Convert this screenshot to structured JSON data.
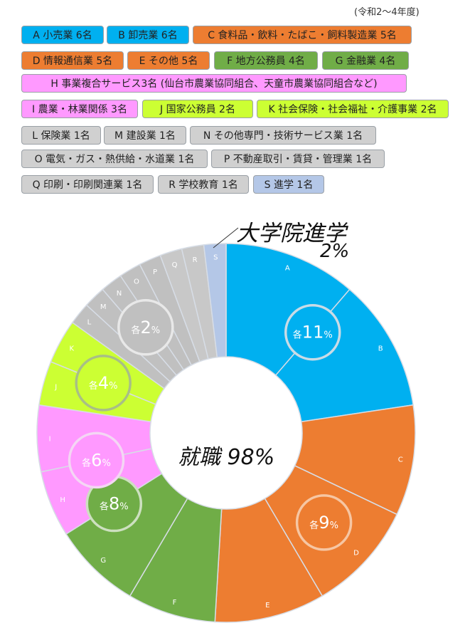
{
  "period": "(令和2〜4年度)",
  "legend": [
    {
      "text": "A 小売業 6名",
      "color": "#00b0f0"
    },
    {
      "text": "B 卸売業 6名",
      "color": "#00b0f0"
    },
    {
      "text": "C 食料品・飲料・たばこ・飼料製造業 5名",
      "color": "#ed7d31"
    },
    {
      "text": "D 情報通信業 5名",
      "color": "#ed7d31"
    },
    {
      "text": "E その他 5名",
      "color": "#ed7d31"
    },
    {
      "text": "F 地方公務員 4名",
      "color": "#70ad47"
    },
    {
      "text": "G 金融業 4名",
      "color": "#70ad47"
    },
    {
      "text": "H 事業複合サービス3名 (仙台市農業協同組合、天童市農業協同組合など)",
      "color": "#ff99ff"
    },
    {
      "text": "I 農業・林業関係 3名",
      "color": "#ff99ff"
    },
    {
      "text": "J 国家公務員 2名",
      "color": "#ccff33"
    },
    {
      "text": "K 社会保険・社会福祉・介護事業 2名",
      "color": "#ccff33"
    },
    {
      "text": "L 保険業 1名",
      "color": "#d0d0d0"
    },
    {
      "text": "M 建設業 1名",
      "color": "#d0d0d0"
    },
    {
      "text": "N その他専門・技術サービス業 1名",
      "color": "#d0d0d0"
    },
    {
      "text": "O 電気・ガス・熱供給・水道業 1名",
      "color": "#d0d0d0"
    },
    {
      "text": "P 不動産取引・賃貸・管理業 1名",
      "color": "#d0d0d0"
    },
    {
      "text": "Q 印刷・印刷関連業 1名",
      "color": "#d0d0d0"
    },
    {
      "text": "R 学校教育 1名",
      "color": "#d0d0d0"
    },
    {
      "text": "S 進学 1名",
      "color": "#b4c7e7"
    }
  ],
  "center_label": "就職 98%",
  "grad_label": "大学院進学",
  "grad_pct": "2%",
  "chart_data": {
    "type": "pie",
    "donut": true,
    "categories": [
      "A",
      "B",
      "C",
      "D",
      "E",
      "F",
      "G",
      "H",
      "I",
      "J",
      "K",
      "L",
      "M",
      "N",
      "O",
      "P",
      "Q",
      "R",
      "S"
    ],
    "values": [
      6,
      6,
      5,
      5,
      5,
      4,
      4,
      3,
      3,
      2,
      2,
      1,
      1,
      1,
      1,
      1,
      1,
      1,
      1
    ],
    "colors": [
      "#00b0f0",
      "#00b0f0",
      "#ed7d31",
      "#ed7d31",
      "#ed7d31",
      "#70ad47",
      "#70ad47",
      "#ff99ff",
      "#ff99ff",
      "#ccff33",
      "#ccff33",
      "#c0c0c0",
      "#c0c0c0",
      "#c0c0c0",
      "#c0c0c0",
      "#c0c0c0",
      "#c8c8c8",
      "#c8c8c8",
      "#b4c7e7"
    ],
    "group_labels": [
      {
        "prefix": "各",
        "value": "11",
        "unit": "%",
        "color": "#00b0f0",
        "ring": "#c9dbe6",
        "mid_cat": "A"
      },
      {
        "prefix": "各",
        "value": "9",
        "unit": "%",
        "color": "#ed7d31",
        "ring": "#f6c6a3",
        "mid_cat": "D"
      },
      {
        "prefix": "各",
        "value": "8",
        "unit": "%",
        "color": "#70ad47",
        "ring": "#cde0c0",
        "mid_cat": "G"
      },
      {
        "prefix": "各",
        "value": "6",
        "unit": "%",
        "color": "#ff99ff",
        "ring": "#f4d6f4",
        "mid_cat": "H"
      },
      {
        "prefix": "各",
        "value": "4",
        "unit": "%",
        "color": "#ccff33",
        "ring": "#a8bf86",
        "mid_cat": "J"
      },
      {
        "prefix": "各",
        "value": "2",
        "unit": "%",
        "color": "#c0c0c0",
        "ring": "#e8e8e8",
        "mid_cat": "N"
      }
    ]
  }
}
